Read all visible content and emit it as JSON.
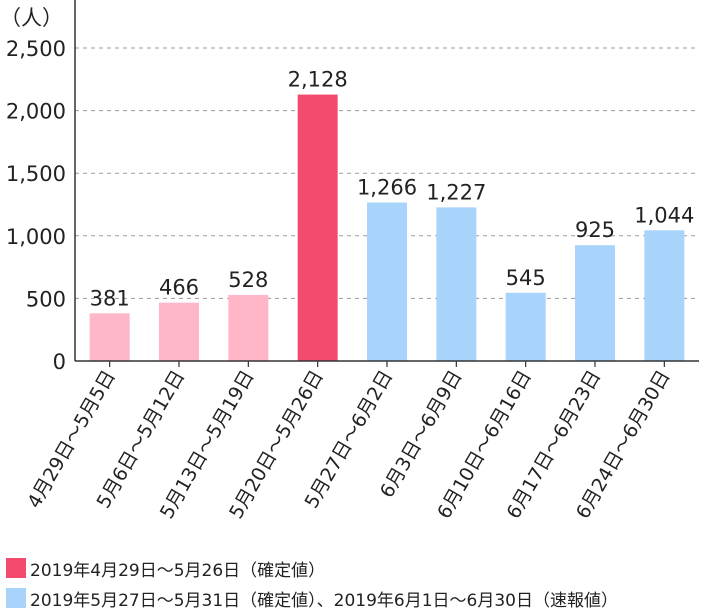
{
  "chart_data": {
    "type": "bar",
    "y_unit": "（人）",
    "categories": [
      "4月29日～5月5日",
      "5月6日～5月12日",
      "5月13日～5月19日",
      "5月20日～5月26日",
      "5月27日～6月2日",
      "6月3日～6月9日",
      "6月10日～6月16日",
      "6月17日～6月23日",
      "6月24日～6月30日"
    ],
    "values": [
      381,
      466,
      528,
      2128,
      1266,
      1227,
      545,
      925,
      1044
    ],
    "data_labels": [
      "381",
      "466",
      "528",
      "2,128",
      "1,266",
      "1,227",
      "545",
      "925",
      "1,044"
    ],
    "bar_colors": [
      "#ffb6c8",
      "#ffb6c8",
      "#ffb6c8",
      "#f24b6e",
      "#a8d4fb",
      "#a8d4fb",
      "#a8d4fb",
      "#a8d4fb",
      "#a8d4fb"
    ],
    "ylim": [
      0,
      2500
    ],
    "yticks": [
      0,
      500,
      1000,
      1500,
      2000,
      2500
    ],
    "ytick_labels": [
      "0",
      "500",
      "1,000",
      "1,500",
      "2,000",
      "2,500"
    ],
    "grid": true,
    "legend": [
      {
        "color": "#f24b6e",
        "label": "2019年4月29日～5月26日（確定値）"
      },
      {
        "color": "#a8d4fb",
        "label": "2019年5月27日～5月31日（確定値）、2019年6月1日～6月30日（速報値）"
      }
    ],
    "legend_position": "bottom-left"
  }
}
